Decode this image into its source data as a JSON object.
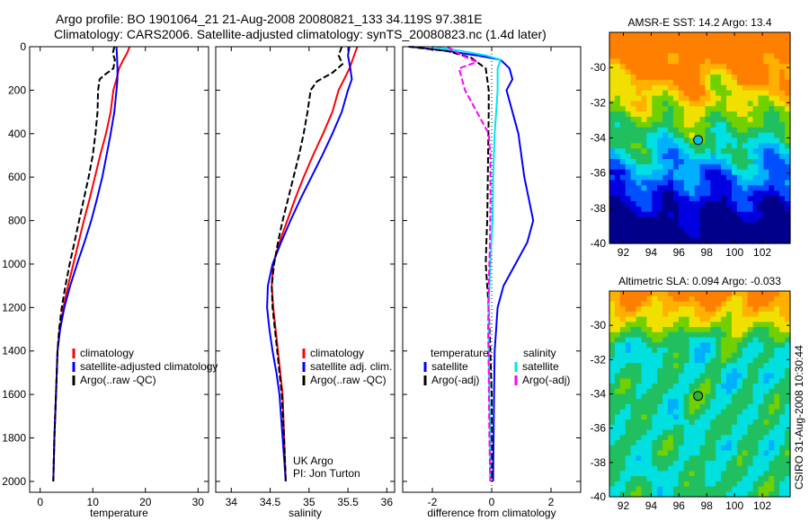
{
  "title_line1": "Argo profile: BO 1901064_21 21-Aug-2008 20080821_133 34.119S 97.381E",
  "title_line2": "Climatology: CARS2006. Satellite-adjusted climatology: synTS_20080823.nc (1.4d later)",
  "credit_vertical": "CSIRO 31-Aug-2008 10:30:44",
  "colors": {
    "red": "#ff0000",
    "blue": "#0000ff",
    "black": "#000000",
    "cyan": "#00e5ee",
    "magenta": "#ff00ff"
  },
  "chart_data": [
    {
      "type": "line",
      "xlabel": "temperature",
      "xlim": [
        -2,
        32
      ],
      "ylim": [
        2050,
        0
      ],
      "xticks": [
        0,
        10,
        20,
        30
      ],
      "yticks": [
        0,
        200,
        400,
        600,
        800,
        1000,
        1200,
        1400,
        1600,
        1800,
        2000
      ],
      "legend": {
        "position": "bottom-right",
        "items": [
          {
            "label": "climatology",
            "color": "#ff0000"
          },
          {
            "label": "satellite-adjusted climatology",
            "color": "#0000ff"
          },
          {
            "label": "Argo(..raw -QC)",
            "color": "#000000"
          }
        ]
      },
      "series": [
        {
          "name": "climatology",
          "color": "#ff0000",
          "dash": false,
          "points": [
            [
              17,
              0
            ],
            [
              16.5,
              30
            ],
            [
              15.8,
              60
            ],
            [
              15,
              100
            ],
            [
              14.5,
              150
            ],
            [
              13.9,
              200
            ],
            [
              13.4,
              300
            ],
            [
              12.5,
              400
            ],
            [
              11.4,
              500
            ],
            [
              10.4,
              600
            ],
            [
              9.4,
              700
            ],
            [
              8.3,
              800
            ],
            [
              7.3,
              900
            ],
            [
              6.3,
              1000
            ],
            [
              5.3,
              1100
            ],
            [
              4.4,
              1200
            ],
            [
              3.7,
              1300
            ],
            [
              3.3,
              1400
            ],
            [
              3,
              1600
            ],
            [
              2.7,
              1800
            ],
            [
              2.5,
              2000
            ]
          ]
        },
        {
          "name": "satellite-adjusted climatology",
          "color": "#0000ff",
          "dash": false,
          "points": [
            [
              14.5,
              0
            ],
            [
              14.6,
              50
            ],
            [
              14.7,
              100
            ],
            [
              14.7,
              150
            ],
            [
              14.5,
              200
            ],
            [
              14.1,
              300
            ],
            [
              13.4,
              400
            ],
            [
              12.6,
              500
            ],
            [
              11.8,
              600
            ],
            [
              10.8,
              700
            ],
            [
              9.7,
              800
            ],
            [
              8.4,
              900
            ],
            [
              7,
              1000
            ],
            [
              5.7,
              1100
            ],
            [
              4.6,
              1200
            ],
            [
              3.8,
              1300
            ],
            [
              3.3,
              1400
            ],
            [
              3,
              1600
            ],
            [
              2.7,
              1800
            ],
            [
              2.5,
              2000
            ]
          ]
        },
        {
          "name": "Argo(..raw -QC)",
          "color": "#000000",
          "dash": true,
          "points": [
            [
              14.1,
              0
            ],
            [
              13.8,
              30
            ],
            [
              14.2,
              60
            ],
            [
              13.9,
              100
            ],
            [
              12.2,
              130
            ],
            [
              11.3,
              150
            ],
            [
              11,
              200
            ],
            [
              10.9,
              300
            ],
            [
              10.5,
              400
            ],
            [
              10,
              500
            ],
            [
              9.2,
              600
            ],
            [
              8.3,
              700
            ],
            [
              7.4,
              800
            ],
            [
              6.5,
              900
            ],
            [
              5.6,
              1000
            ],
            [
              4.8,
              1100
            ],
            [
              4.1,
              1200
            ],
            [
              3.6,
              1300
            ],
            [
              3.3,
              1400
            ],
            [
              3,
              1600
            ],
            [
              2.7,
              1800
            ],
            [
              2.5,
              2000
            ]
          ]
        }
      ]
    },
    {
      "type": "line",
      "xlabel": "salinity",
      "xlim": [
        33.8,
        36.1
      ],
      "ylim": [
        2050,
        0
      ],
      "xticks": [
        34,
        34.5,
        35,
        35.5,
        36
      ],
      "xticklabels": [
        "34",
        "34.5",
        "35",
        "35.5",
        "36"
      ],
      "legend": {
        "position": "bottom-right",
        "items": [
          {
            "label": "climatology",
            "color": "#ff0000"
          },
          {
            "label": "satellite adj. clim.",
            "color": "#0000ff"
          },
          {
            "label": "Argo(..raw -QC)",
            "color": "#000000"
          }
        ]
      },
      "annotation_line1": "UK Argo",
      "annotation_line2": "PI: Jon Turton",
      "series": [
        {
          "name": "climatology",
          "color": "#ff0000",
          "dash": false,
          "points": [
            [
              35.62,
              0
            ],
            [
              35.58,
              40
            ],
            [
              35.52,
              100
            ],
            [
              35.45,
              150
            ],
            [
              35.38,
              200
            ],
            [
              35.3,
              300
            ],
            [
              35.18,
              400
            ],
            [
              35.05,
              500
            ],
            [
              34.93,
              600
            ],
            [
              34.82,
              700
            ],
            [
              34.72,
              800
            ],
            [
              34.62,
              900
            ],
            [
              34.54,
              1000
            ],
            [
              34.52,
              1100
            ],
            [
              34.54,
              1200
            ],
            [
              34.57,
              1300
            ],
            [
              34.6,
              1400
            ],
            [
              34.63,
              1500
            ],
            [
              34.66,
              1600
            ],
            [
              34.68,
              1800
            ],
            [
              34.7,
              2000
            ]
          ]
        },
        {
          "name": "satellite adj. clim.",
          "color": "#0000ff",
          "dash": false,
          "points": [
            [
              35.52,
              0
            ],
            [
              35.5,
              40
            ],
            [
              35.53,
              100
            ],
            [
              35.55,
              150
            ],
            [
              35.5,
              200
            ],
            [
              35.42,
              300
            ],
            [
              35.3,
              400
            ],
            [
              35.17,
              500
            ],
            [
              35.03,
              600
            ],
            [
              34.89,
              700
            ],
            [
              34.76,
              800
            ],
            [
              34.64,
              900
            ],
            [
              34.53,
              1000
            ],
            [
              34.47,
              1100
            ],
            [
              34.46,
              1200
            ],
            [
              34.49,
              1300
            ],
            [
              34.53,
              1400
            ],
            [
              34.58,
              1500
            ],
            [
              34.62,
              1600
            ],
            [
              34.66,
              1800
            ],
            [
              34.7,
              2000
            ]
          ]
        },
        {
          "name": "Argo(..raw -QC)",
          "color": "#000000",
          "dash": true,
          "points": [
            [
              35.42,
              0
            ],
            [
              35.38,
              40
            ],
            [
              35.43,
              80
            ],
            [
              35.3,
              120
            ],
            [
              35.1,
              160
            ],
            [
              35.02,
              200
            ],
            [
              34.98,
              300
            ],
            [
              34.93,
              400
            ],
            [
              34.87,
              500
            ],
            [
              34.8,
              600
            ],
            [
              34.73,
              700
            ],
            [
              34.66,
              800
            ],
            [
              34.6,
              900
            ],
            [
              34.55,
              1000
            ],
            [
              34.52,
              1100
            ],
            [
              34.53,
              1200
            ],
            [
              34.56,
              1300
            ],
            [
              34.59,
              1400
            ],
            [
              34.62,
              1500
            ],
            [
              34.65,
              1600
            ],
            [
              34.68,
              1800
            ],
            [
              34.7,
              2000
            ]
          ]
        }
      ]
    },
    {
      "type": "line",
      "xlabel": "difference from climatology",
      "xlim": [
        -3,
        3
      ],
      "ylim": [
        2050,
        0
      ],
      "xticks": [
        -2,
        0,
        2
      ],
      "xticklabels": [
        "-2",
        "0",
        "2"
      ],
      "legend": {
        "position": "bottom",
        "heading_left": "temperature",
        "heading_right": "salinity",
        "items": [
          {
            "label": "satellite",
            "color": "#0000ff"
          },
          {
            "label": "Argo(-adj)",
            "color": "#000000"
          },
          {
            "label": "satellite",
            "color": "#00e5ee"
          },
          {
            "label": "Argo(-adj)",
            "color": "#ff00ff"
          }
        ]
      },
      "series": [
        {
          "name": "temperature satellite",
          "color": "#0000ff",
          "dash": false,
          "points": [
            [
              -2.7,
              0
            ],
            [
              -1.5,
              20
            ],
            [
              -0.5,
              40
            ],
            [
              0.3,
              60
            ],
            [
              0.6,
              100
            ],
            [
              0.7,
              150
            ],
            [
              0.5,
              200
            ],
            [
              0.7,
              300
            ],
            [
              0.9,
              400
            ],
            [
              1,
              500
            ],
            [
              1.1,
              600
            ],
            [
              1.25,
              700
            ],
            [
              1.4,
              800
            ],
            [
              1.2,
              900
            ],
            [
              0.8,
              1000
            ],
            [
              0.4,
              1100
            ],
            [
              0.2,
              1200
            ],
            [
              0.1,
              1400
            ],
            [
              0.08,
              1600
            ],
            [
              0.05,
              2000
            ]
          ]
        },
        {
          "name": "temperature Argo(-adj)",
          "color": "#000000",
          "dash": true,
          "points": [
            [
              -2.8,
              0
            ],
            [
              -1.5,
              20
            ],
            [
              -0.7,
              50
            ],
            [
              -0.2,
              100
            ],
            [
              -0.1,
              200
            ],
            [
              -0.1,
              300
            ],
            [
              -0.12,
              500
            ],
            [
              -0.14,
              700
            ],
            [
              -0.15,
              800
            ],
            [
              -0.18,
              900
            ],
            [
              -0.2,
              1000
            ],
            [
              -0.15,
              1100
            ],
            [
              -0.1,
              1200
            ],
            [
              -0.05,
              1400
            ],
            [
              0,
              1600
            ],
            [
              0,
              2000
            ]
          ]
        },
        {
          "name": "salinity satellite",
          "color": "#00e5ee",
          "dash": false,
          "points": [
            [
              -2,
              0
            ],
            [
              -1,
              20
            ],
            [
              -0.2,
              40
            ],
            [
              0.3,
              60
            ],
            [
              0.2,
              100
            ],
            [
              0.2,
              200
            ],
            [
              0.15,
              300
            ],
            [
              0.1,
              400
            ],
            [
              0.05,
              600
            ],
            [
              0.03,
              800
            ],
            [
              -0.05,
              1000
            ],
            [
              -0.1,
              1200
            ],
            [
              -0.1,
              1400
            ],
            [
              -0.08,
              1600
            ],
            [
              -0.05,
              1800
            ],
            [
              -0.05,
              2000
            ]
          ]
        },
        {
          "name": "salinity Argo(-adj)",
          "color": "#ff00ff",
          "dash": true,
          "points": [
            [
              -1.5,
              0
            ],
            [
              -1,
              40
            ],
            [
              -0.5,
              70
            ],
            [
              -1.1,
              100
            ],
            [
              -1,
              150
            ],
            [
              -0.9,
              200
            ],
            [
              -0.5,
              300
            ],
            [
              -0.1,
              400
            ],
            [
              -0.05,
              500
            ],
            [
              -0.04,
              700
            ],
            [
              -0.06,
              900
            ],
            [
              -0.1,
              1100
            ],
            [
              -0.12,
              1300
            ],
            [
              -0.1,
              1500
            ],
            [
              -0.08,
              1800
            ],
            [
              -0.05,
              2000
            ]
          ]
        }
      ]
    },
    {
      "type": "heatmap",
      "title": "AMSR-E SST: 14.2  Argo: 13.4",
      "xlim": [
        91,
        104
      ],
      "ylim": [
        -40,
        -28
      ],
      "xticks": [
        92,
        94,
        96,
        98,
        100,
        102
      ],
      "yticks": [
        -30,
        -32,
        -34,
        -36,
        -38,
        -40
      ],
      "marker": {
        "lon": 97.381,
        "lat": -34.119,
        "color": "#00bfe0"
      },
      "colorscale": [
        "#00008b",
        "#0000e0",
        "#0050ff",
        "#00b0ff",
        "#00e0e0",
        "#20c060",
        "#70d000",
        "#f0e000",
        "#ffb000",
        "#ff8000"
      ]
    },
    {
      "type": "heatmap",
      "title": "Altimetric SLA: 0.094  Argo: -0.033",
      "xlim": [
        91,
        104
      ],
      "ylim": [
        -40,
        -28
      ],
      "xticks": [
        92,
        94,
        96,
        98,
        100,
        102
      ],
      "yticks": [
        -30,
        -32,
        -34,
        -36,
        -38,
        -40
      ],
      "marker": {
        "lon": 97.381,
        "lat": -34.119,
        "color": "#30b030"
      },
      "colorscale": [
        "#00008b",
        "#0000e0",
        "#0050ff",
        "#00b0ff",
        "#00e0e0",
        "#20c060",
        "#70d000",
        "#f0e000",
        "#ffb000",
        "#ff8000"
      ]
    }
  ]
}
